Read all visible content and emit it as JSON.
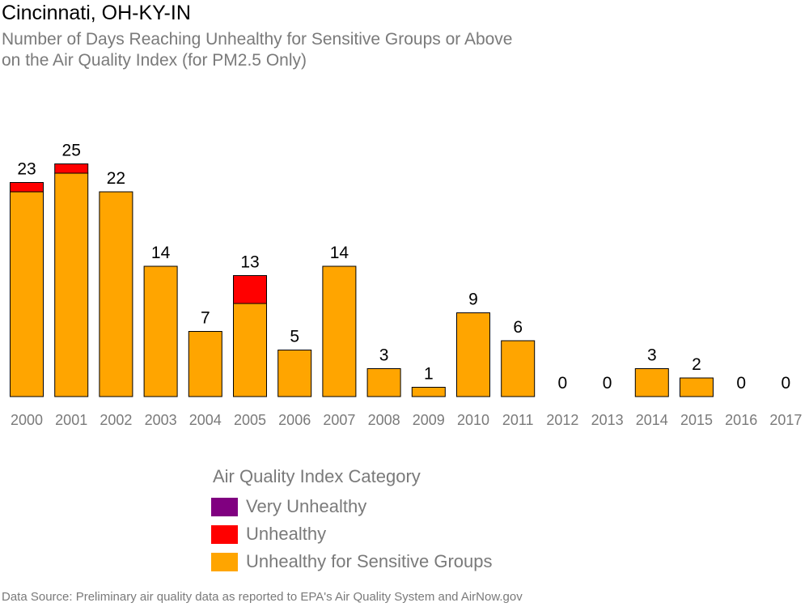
{
  "title": "Cincinnati, OH-KY-IN",
  "subtitle_line1": "Number of Days Reaching Unhealthy for Sensitive Groups or Above",
  "subtitle_line2": "on the Air Quality Index (for PM2.5 Only)",
  "legend": {
    "title": "Air Quality Index Category",
    "items": [
      {
        "label": "Very Unhealthy",
        "color": "#800080"
      },
      {
        "label": "Unhealthy",
        "color": "#ff0000"
      },
      {
        "label": "Unhealthy for Sensitive Groups",
        "color": "#ffa500"
      }
    ]
  },
  "source": "Data Source: Preliminary air quality data as reported to EPA's Air Quality System and AirNow.gov",
  "chart_data": {
    "type": "bar",
    "stacked": true,
    "categories": [
      "2000",
      "2001",
      "2002",
      "2003",
      "2004",
      "2005",
      "2006",
      "2007",
      "2008",
      "2009",
      "2010",
      "2011",
      "2012",
      "2013",
      "2014",
      "2015",
      "2016",
      "2017"
    ],
    "series": [
      {
        "name": "Unhealthy for Sensitive Groups",
        "color": "#ffa500",
        "values": [
          22,
          24,
          22,
          14,
          7,
          10,
          5,
          14,
          3,
          1,
          9,
          6,
          0,
          0,
          3,
          2,
          0,
          0
        ]
      },
      {
        "name": "Unhealthy",
        "color": "#ff0000",
        "values": [
          1,
          1,
          0,
          0,
          0,
          3,
          0,
          0,
          0,
          0,
          0,
          0,
          0,
          0,
          0,
          0,
          0,
          0
        ]
      },
      {
        "name": "Very Unhealthy",
        "color": "#800080",
        "values": [
          0,
          0,
          0,
          0,
          0,
          0,
          0,
          0,
          0,
          0,
          0,
          0,
          0,
          0,
          0,
          0,
          0,
          0
        ]
      }
    ],
    "totals": [
      23,
      25,
      22,
      14,
      7,
      13,
      5,
      14,
      3,
      1,
      9,
      6,
      0,
      0,
      3,
      2,
      0,
      0
    ],
    "ylim": [
      0,
      25
    ],
    "grid": false,
    "legend_position": "bottom"
  }
}
